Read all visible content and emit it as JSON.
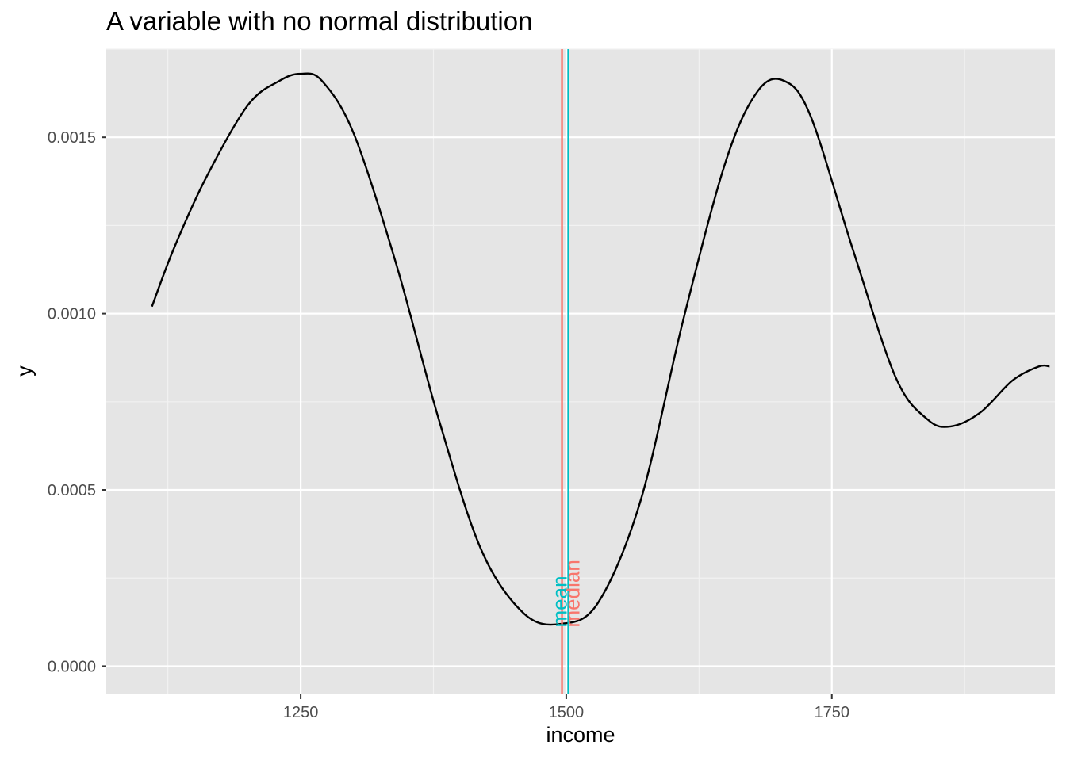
{
  "chart_data": {
    "type": "line",
    "title": "A variable with no normal distribution",
    "xlabel": "income",
    "ylabel": "y",
    "xlim": [
      1067,
      1960
    ],
    "ylim": [
      -8e-05,
      0.00175
    ],
    "x_ticks": [
      1250,
      1500,
      1750
    ],
    "x_tick_labels": [
      "1250",
      "1500",
      "1750"
    ],
    "y_ticks": [
      0.0,
      0.0005,
      0.001,
      0.0015
    ],
    "y_tick_labels": [
      "0.0000",
      "0.0005",
      "0.0010",
      "0.0015"
    ],
    "grid": true,
    "series": [
      {
        "color": "#000000",
        "x": [
          1110,
          1130,
          1160,
          1200,
          1230,
          1250,
          1270,
          1300,
          1340,
          1380,
          1420,
          1460,
          1495,
          1530,
          1570,
          1610,
          1650,
          1680,
          1705,
          1730,
          1770,
          1810,
          1840,
          1862,
          1890,
          1920,
          1945,
          1955
        ],
        "y": [
          0.00102,
          0.00118,
          0.00138,
          0.00159,
          0.00166,
          0.00168,
          0.00166,
          0.00151,
          0.00114,
          0.0007,
          0.00033,
          0.00015,
          0.00012,
          0.00018,
          0.00047,
          0.00098,
          0.00143,
          0.00163,
          0.00166,
          0.00156,
          0.00118,
          0.00082,
          0.0007,
          0.00068,
          0.00072,
          0.00081,
          0.00085,
          0.00085
        ]
      }
    ],
    "vlines": [
      {
        "label": "median",
        "x": 1496,
        "color": "#F8766D"
      },
      {
        "label": "mean",
        "x": 1502,
        "color": "#00BFC4"
      }
    ]
  }
}
